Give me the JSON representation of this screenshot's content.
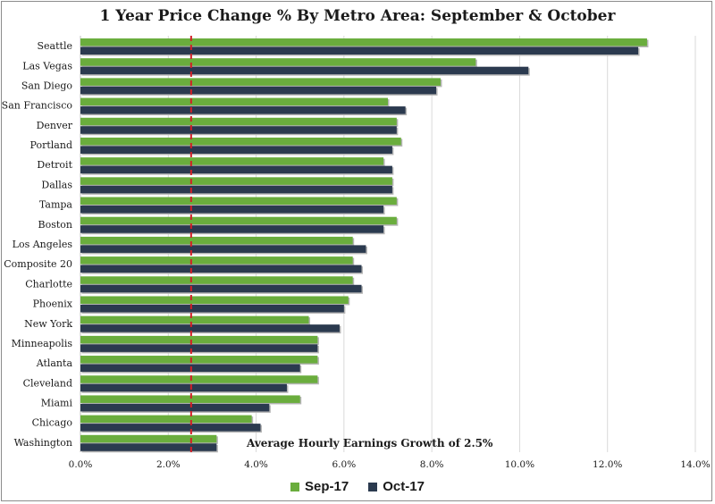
{
  "chart_data": {
    "type": "bar",
    "orientation": "horizontal",
    "title": "1 Year Price Change % By Metro Area: September  & October",
    "categories": [
      "Seattle",
      "Las Vegas",
      "San Diego",
      "San Francisco",
      "Denver",
      "Portland",
      "Detroit",
      "Dallas",
      "Tampa",
      "Boston",
      "Los Angeles",
      "Composite 20",
      "Charlotte",
      "Phoenix",
      "New York",
      "Minneapolis",
      "Atlanta",
      "Cleveland",
      "Miami",
      "Chicago",
      "Washington"
    ],
    "series": [
      {
        "name": "Sep-17",
        "color": "#6aad3d",
        "values": [
          12.9,
          9.0,
          8.2,
          7.0,
          7.2,
          7.3,
          6.9,
          7.1,
          7.2,
          7.2,
          6.2,
          6.2,
          6.2,
          6.1,
          5.2,
          5.4,
          5.4,
          5.4,
          5.0,
          3.9,
          3.1
        ]
      },
      {
        "name": "Oct-17",
        "color": "#2b3a4f",
        "values": [
          12.7,
          10.2,
          8.1,
          7.4,
          7.2,
          7.1,
          7.1,
          7.1,
          6.9,
          6.9,
          6.5,
          6.4,
          6.4,
          6.0,
          5.9,
          5.4,
          5.0,
          4.7,
          4.3,
          4.1,
          3.1
        ]
      }
    ],
    "xlim": [
      0,
      14
    ],
    "xticks": [
      "0.0%",
      "2.0%",
      "4.0%",
      "6.0%",
      "8.0%",
      "10.0%",
      "12.0%",
      "14.0%"
    ],
    "grid": true,
    "reference_line": {
      "value": 2.5,
      "color": "#d21f26",
      "style": "dashed"
    },
    "annotation": "Average Hourly Earnings Growth of 2.5%",
    "legend_position": "bottom"
  }
}
